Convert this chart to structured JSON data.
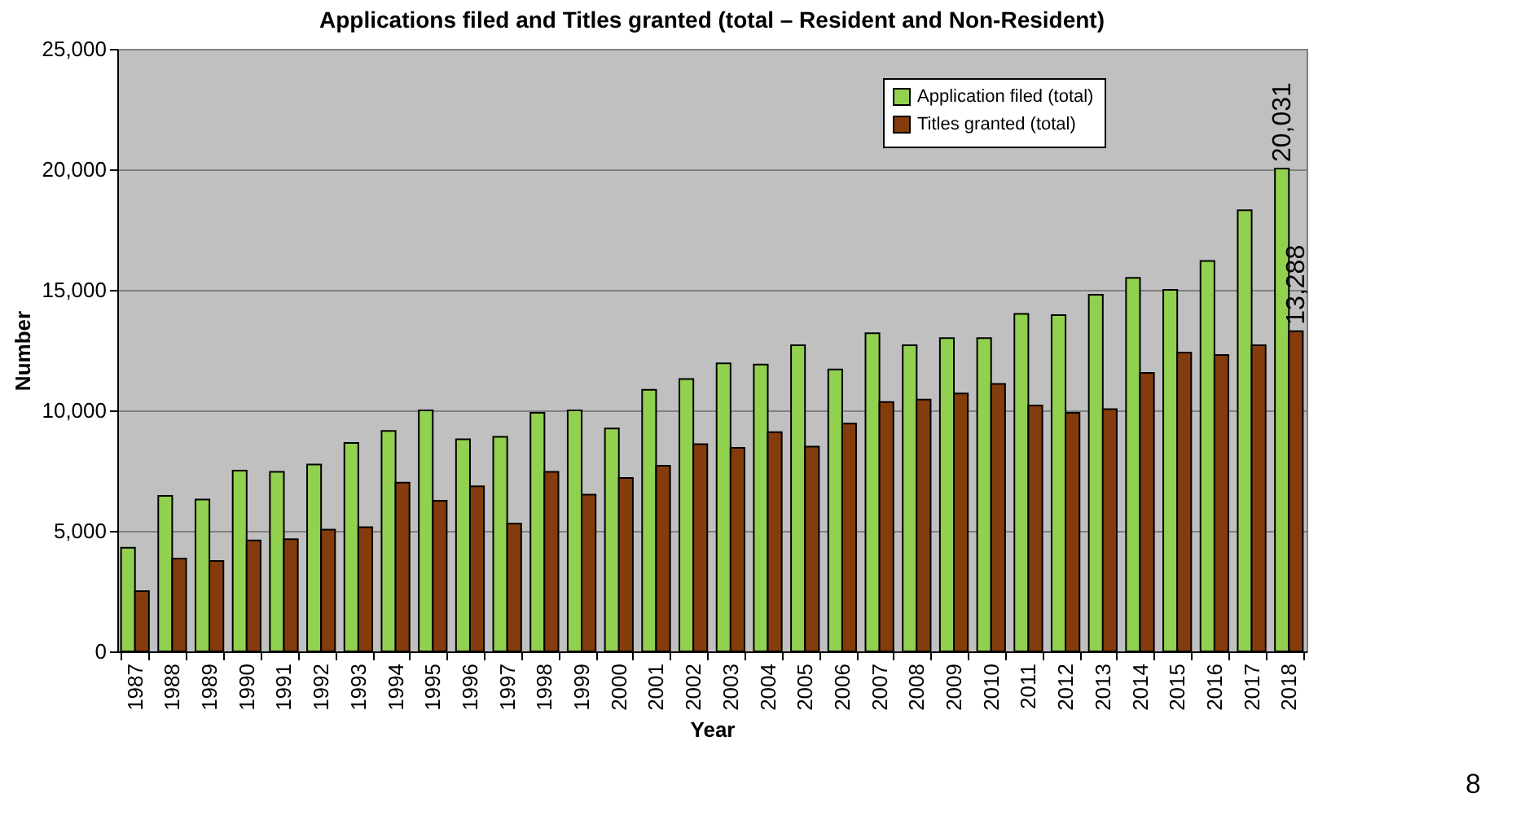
{
  "chart_data": {
    "type": "bar",
    "title": "Applications filed and Titles granted (total – Resident and Non-Resident)",
    "xlabel": "Year",
    "ylabel": "Number",
    "categories": [
      "1987",
      "1988",
      "1989",
      "1990",
      "1991",
      "1992",
      "1993",
      "1994",
      "1995",
      "1996",
      "1997",
      "1998",
      "1999",
      "2000",
      "2001",
      "2002",
      "2003",
      "2004",
      "2005",
      "2006",
      "2007",
      "2008",
      "2009",
      "2010",
      "2011",
      "2012",
      "2013",
      "2014",
      "2015",
      "2016",
      "2017",
      "2018"
    ],
    "series": [
      {
        "name": "Application filed (total)",
        "color": "#92d050",
        "values": [
          4300,
          6450,
          6300,
          7500,
          7450,
          7750,
          8650,
          9150,
          10000,
          8800,
          8900,
          9900,
          10000,
          9250,
          10850,
          11300,
          11950,
          11900,
          12700,
          11700,
          13200,
          12700,
          13000,
          13000,
          14000,
          13950,
          14800,
          15500,
          15000,
          16200,
          18300,
          20031
        ],
        "value_labels": [
          null,
          null,
          null,
          null,
          null,
          null,
          null,
          null,
          null,
          null,
          null,
          null,
          null,
          null,
          null,
          null,
          null,
          null,
          null,
          null,
          null,
          null,
          null,
          null,
          null,
          null,
          null,
          null,
          null,
          null,
          null,
          "20,031"
        ]
      },
      {
        "name": "Titles granted (total)",
        "color": "#843c0c",
        "values": [
          2500,
          3850,
          3750,
          4600,
          4650,
          5050,
          5150,
          7000,
          6250,
          6850,
          5300,
          7450,
          6500,
          7200,
          7700,
          8600,
          8450,
          9100,
          8500,
          9450,
          10350,
          10450,
          10700,
          11100,
          10200,
          9900,
          10050,
          11550,
          12400,
          12300,
          12700,
          13288
        ],
        "value_labels": [
          null,
          null,
          null,
          null,
          null,
          null,
          null,
          null,
          null,
          null,
          null,
          null,
          null,
          null,
          null,
          null,
          null,
          null,
          null,
          null,
          null,
          null,
          null,
          null,
          null,
          null,
          null,
          null,
          null,
          null,
          null,
          "13,288"
        ]
      }
    ],
    "ylim": [
      0,
      25000
    ],
    "yticks": [
      {
        "value": 0,
        "label": "0"
      },
      {
        "value": 5000,
        "label": "5,000"
      },
      {
        "value": 10000,
        "label": "10,000"
      },
      {
        "value": 15000,
        "label": "15,000"
      },
      {
        "value": 20000,
        "label": "20,000"
      },
      {
        "value": 25000,
        "label": "25,000"
      }
    ],
    "grid": "y",
    "legend": "top right",
    "annotations": [
      "8"
    ]
  }
}
